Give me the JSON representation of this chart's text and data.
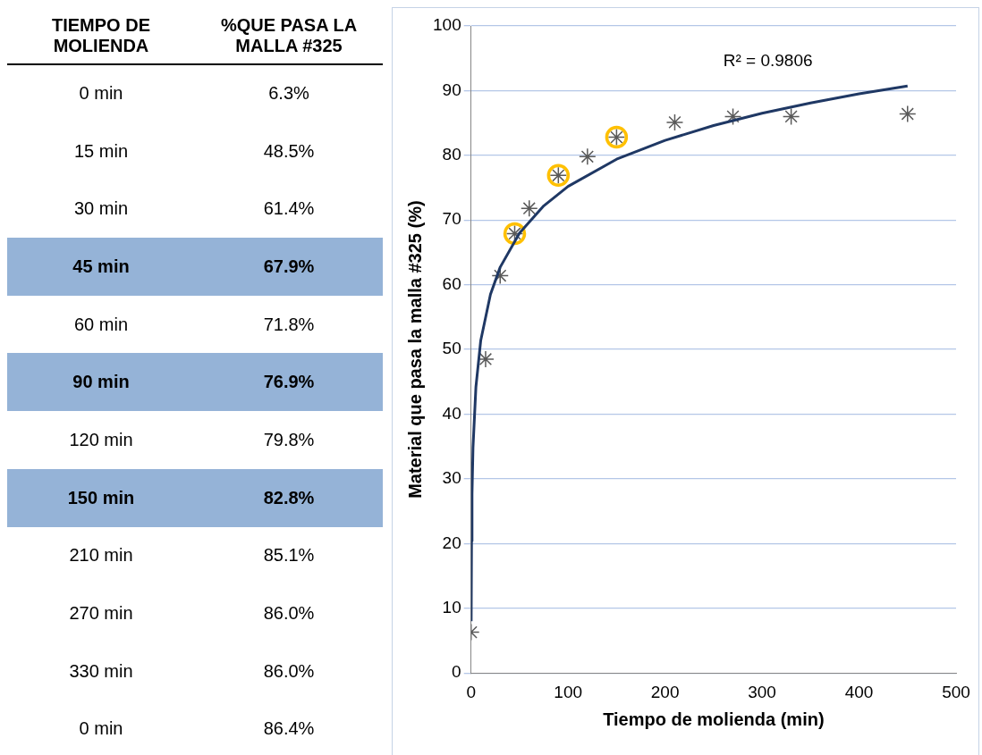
{
  "chart_data": [
    {
      "type": "heatmap",
      "ylabel": "TIEMPO DE MOLIENDA",
      "categories": [
        "%QUE PASA LA MALLA #325"
      ],
      "y_categories": [
        "0 min",
        "15 min",
        "30 min",
        "45 min",
        "60 min",
        "90 min",
        "120 min",
        "150 min",
        "210 min",
        "270 min",
        "330 min",
        "0 min"
      ],
      "cells": [
        [
          6.3
        ],
        [
          48.5
        ],
        [
          61.4
        ],
        [
          67.9
        ],
        [
          71.8
        ],
        [
          76.9
        ],
        [
          79.8
        ],
        [
          82.8
        ],
        [
          85.1
        ],
        [
          86.0
        ],
        [
          86.0
        ],
        [
          86.4
        ]
      ],
      "cell_labels": [
        [
          "6.3%"
        ],
        [
          "48.5%"
        ],
        [
          "61.4%"
        ],
        [
          "67.9%"
        ],
        [
          "71.8%"
        ],
        [
          "76.9%"
        ],
        [
          "79.8%"
        ],
        [
          "82.8%"
        ],
        [
          "85.1%"
        ],
        [
          "86.0%"
        ],
        [
          "86.0%"
        ],
        [
          "86.4%"
        ]
      ],
      "colors": [
        "#ffffff",
        "#ffffff",
        "#ffffff",
        "#95b3d7",
        "#ffffff",
        "#95b3d7",
        "#ffffff",
        "#95b3d7",
        "#ffffff",
        "#ffffff",
        "#ffffff",
        "#ffffff"
      ]
    },
    {
      "type": "scatter",
      "xlabel": "Tiempo de molienda (min)",
      "ylabel": "Material que pasa la malla #325 (%)",
      "xlim": [
        0,
        500
      ],
      "xticks": [
        0,
        100,
        200,
        300,
        400,
        500
      ],
      "ylim": [
        0,
        100
      ],
      "yticks": [
        0,
        10,
        20,
        30,
        40,
        50,
        60,
        70,
        80,
        90,
        100
      ],
      "grid": "y",
      "annotations": [
        "R² = 0.9806"
      ],
      "series": [
        {
          "type": "scatter",
          "marker": "cross",
          "color": "#595959",
          "x": [
            0,
            15,
            30,
            45,
            60,
            90,
            120,
            150,
            210,
            270,
            330,
            450
          ],
          "values": [
            6.3,
            48.5,
            61.4,
            67.9,
            71.8,
            76.9,
            79.8,
            82.8,
            85.1,
            86.0,
            86.0,
            86.4
          ]
        },
        {
          "type": "scatter",
          "marker": "circle",
          "color": "#ffc000",
          "x": [
            45,
            90,
            150
          ],
          "values": [
            67.9,
            76.9,
            82.8
          ]
        },
        {
          "type": "line",
          "marker": "none",
          "color": "#1f3864",
          "x": [
            0.15,
            0.5,
            1,
            2,
            5,
            10,
            20,
            30,
            50,
            75,
            100,
            150,
            200,
            250,
            300,
            350,
            400,
            450
          ],
          "values": [
            8,
            20.4,
            27.6,
            34.8,
            44.2,
            51.4,
            58.5,
            62.7,
            68,
            72.2,
            75.2,
            79.4,
            82.3,
            84.6,
            86.5,
            88.1,
            89.5,
            90.7
          ]
        }
      ]
    }
  ]
}
